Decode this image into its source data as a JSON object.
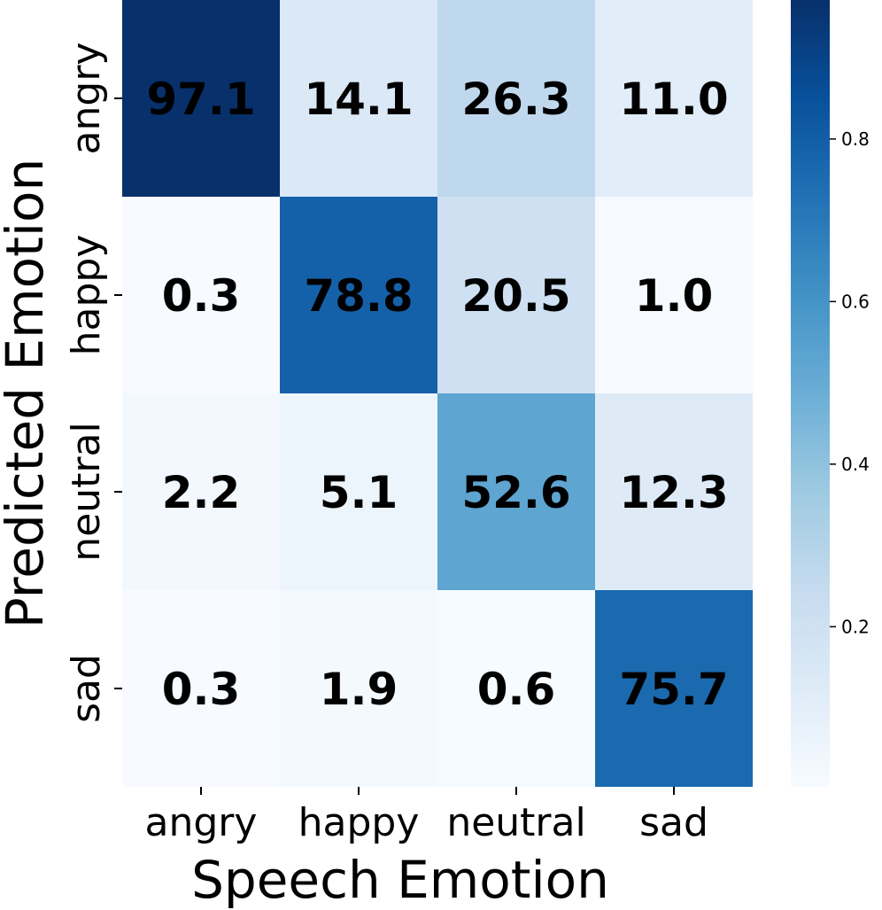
{
  "chart_data": {
    "type": "heatmap",
    "xlabel": "Speech Emotion",
    "ylabel": "Predicted Emotion",
    "x_categories": [
      "angry",
      "happy",
      "neutral",
      "sad"
    ],
    "y_categories": [
      "angry",
      "happy",
      "neutral",
      "sad"
    ],
    "values": [
      [
        97.1,
        14.1,
        26.3,
        11.0
      ],
      [
        0.3,
        78.8,
        20.5,
        1.0
      ],
      [
        2.2,
        5.1,
        52.6,
        12.3
      ],
      [
        0.3,
        1.9,
        0.6,
        75.7
      ]
    ],
    "value_labels": [
      [
        "97.1",
        "14.1",
        "26.3",
        "11.0"
      ],
      [
        "0.3",
        "78.8",
        "20.5",
        "1.0"
      ],
      [
        "2.2",
        "5.1",
        "52.6",
        "12.3"
      ],
      [
        "0.3",
        "1.9",
        "0.6",
        "75.7"
      ]
    ],
    "colormap": "Blues",
    "colorbar": {
      "range": [
        0.003,
        0.971
      ],
      "ticks": [
        0.2,
        0.4,
        0.6,
        0.8
      ],
      "tick_labels": [
        "0.2",
        "0.4",
        "0.6",
        "0.8"
      ]
    }
  }
}
